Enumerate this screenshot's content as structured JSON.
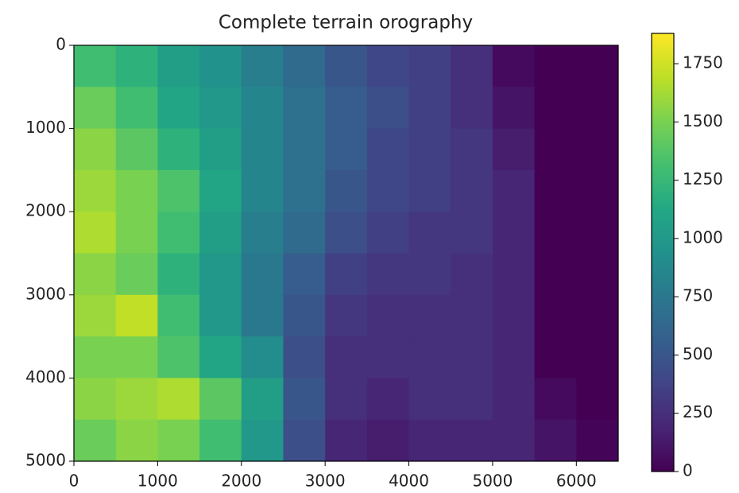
{
  "chart_data": {
    "type": "heatmap",
    "title": "Complete terrain orography",
    "colormap": "viridis",
    "xbins": [
      0,
      500,
      1000,
      1500,
      2000,
      2500,
      3000,
      3500,
      4000,
      4500,
      5000,
      5500,
      6000,
      6500
    ],
    "ybins": [
      0,
      500,
      1000,
      1500,
      2000,
      2500,
      3000,
      3500,
      4000,
      4500,
      5000
    ],
    "values": [
      [
        1300,
        1200,
        1050,
        950,
        800,
        650,
        500,
        400,
        350,
        250,
        50,
        0,
        0
      ],
      [
        1450,
        1300,
        1100,
        1000,
        850,
        700,
        550,
        450,
        350,
        250,
        100,
        0,
        0
      ],
      [
        1550,
        1400,
        1200,
        1050,
        850,
        700,
        550,
        400,
        350,
        300,
        150,
        0,
        0
      ],
      [
        1600,
        1500,
        1350,
        1100,
        850,
        700,
        500,
        400,
        350,
        300,
        200,
        0,
        0
      ],
      [
        1650,
        1500,
        1300,
        1050,
        800,
        650,
        450,
        350,
        300,
        300,
        200,
        0,
        0
      ],
      [
        1550,
        1450,
        1200,
        1000,
        750,
        550,
        350,
        300,
        300,
        250,
        200,
        0,
        0
      ],
      [
        1600,
        1700,
        1300,
        1000,
        750,
        500,
        300,
        250,
        250,
        250,
        200,
        0,
        0
      ],
      [
        1500,
        1500,
        1350,
        1100,
        900,
        450,
        250,
        250,
        250,
        250,
        200,
        0,
        0
      ],
      [
        1550,
        1600,
        1650,
        1400,
        1050,
        500,
        250,
        200,
        250,
        250,
        200,
        50,
        0
      ],
      [
        1450,
        1550,
        1500,
        1300,
        1000,
        450,
        200,
        150,
        200,
        200,
        200,
        100,
        20
      ]
    ],
    "xlim": [
      0,
      6500
    ],
    "xticks": [
      0,
      1000,
      2000,
      3000,
      4000,
      5000,
      6000
    ],
    "ylim": [
      5000,
      0
    ],
    "yticks": [
      0,
      1000,
      2000,
      3000,
      4000,
      5000
    ],
    "colorbar": {
      "lim": [
        0,
        1880
      ],
      "ticks": [
        0,
        250,
        500,
        750,
        1000,
        1250,
        1500,
        1750
      ]
    }
  }
}
